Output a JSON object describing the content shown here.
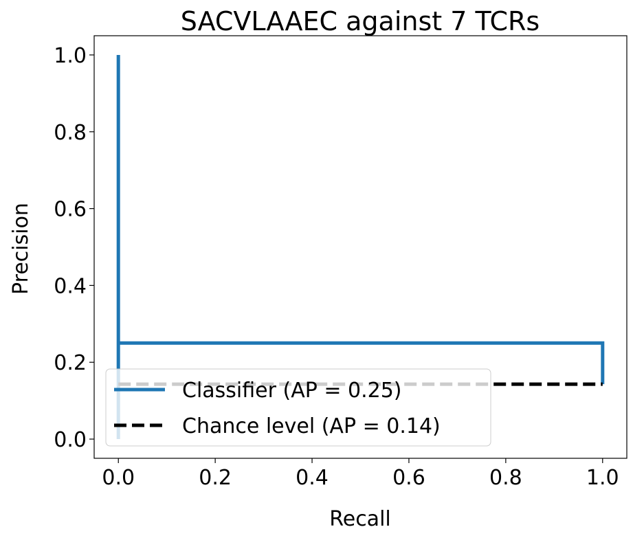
{
  "chart_data": {
    "type": "line",
    "title": "SACVLAAEC against 7 TCRs",
    "xlabel": "Recall",
    "ylabel": "Precision",
    "xlim": [
      -0.05,
      1.05
    ],
    "ylim": [
      -0.05,
      1.05
    ],
    "xticks": [
      "0.0",
      "0.2",
      "0.4",
      "0.6",
      "0.8",
      "1.0"
    ],
    "xtick_values": [
      0.0,
      0.2,
      0.4,
      0.6,
      0.8,
      1.0
    ],
    "yticks": [
      "0.0",
      "0.2",
      "0.4",
      "0.6",
      "0.8",
      "1.0"
    ],
    "ytick_values": [
      0.0,
      0.2,
      0.4,
      0.6,
      0.8,
      1.0
    ],
    "grid": false,
    "legend_position": "lower-left",
    "series": [
      {
        "name": "Classifier (AP = 0.25)",
        "color": "#1f77b4",
        "style": "solid",
        "drawstyle": "steps",
        "x": [
          0.0,
          0.0,
          0.0,
          1.0,
          1.0
        ],
        "y": [
          1.0,
          0.0,
          0.25,
          0.25,
          0.143
        ]
      },
      {
        "name": "Chance level (AP = 0.14)",
        "color": "#000000",
        "style": "dashed",
        "x": [
          0.0,
          1.0
        ],
        "y": [
          0.143,
          0.143
        ]
      }
    ]
  }
}
